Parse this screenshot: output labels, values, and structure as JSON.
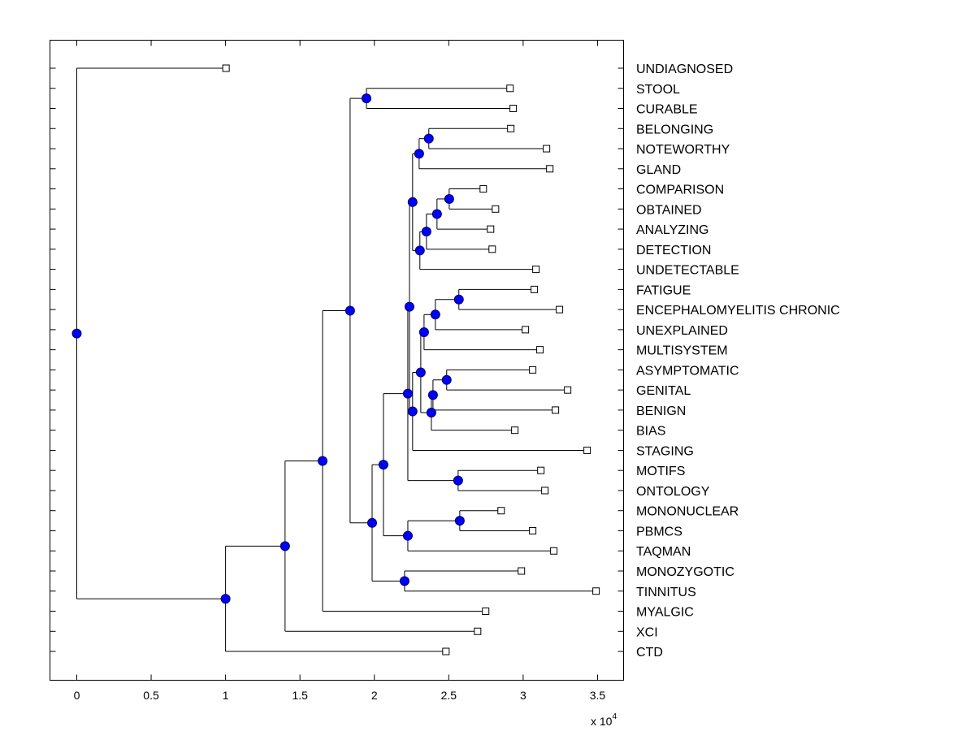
{
  "chart_data": {
    "type": "dendrogram",
    "title": "",
    "xlabel": "",
    "ylabel": "",
    "x_multiplier": {
      "base": "x 10",
      "exponent": "4"
    },
    "xlim": [
      -0.18,
      3.675
    ],
    "xticks": [
      0,
      0.5,
      1,
      1.5,
      2,
      2.5,
      3,
      3.5
    ],
    "xtick_labels": [
      "0",
      "0.5",
      "1",
      "1.5",
      "2",
      "2.5",
      "3",
      "3.5"
    ],
    "colors": {
      "node_fill": "#0000ff",
      "node_stroke": "#000060",
      "line": "#000000",
      "leaf_fill": "#ffffff"
    },
    "leaves": [
      {
        "label": "UNDIAGNOSED",
        "value": 1.003
      },
      {
        "label": "STOOL",
        "value": 2.912
      },
      {
        "label": "CURABLE",
        "value": 2.933
      },
      {
        "label": "BELONGING",
        "value": 2.917
      },
      {
        "label": "NOTEWORTHY",
        "value": 3.157
      },
      {
        "label": "GLAND",
        "value": 3.179
      },
      {
        "label": "COMPARISON",
        "value": 2.732
      },
      {
        "label": "OBTAINED",
        "value": 2.814
      },
      {
        "label": "ANALYZING",
        "value": 2.781
      },
      {
        "label": "DETECTION",
        "value": 2.792
      },
      {
        "label": "UNDETECTABLE",
        "value": 3.086
      },
      {
        "label": "FATIGUE",
        "value": 3.075
      },
      {
        "label": "ENCEPHALOMYELITIS CHRONIC",
        "value": 3.244
      },
      {
        "label": "UNEXPLAINED",
        "value": 3.015
      },
      {
        "label": "MULTISYSTEM",
        "value": 3.113
      },
      {
        "label": "ASYMPTOMATIC",
        "value": 3.064
      },
      {
        "label": "GENITAL",
        "value": 3.299
      },
      {
        "label": "BENIGN",
        "value": 3.217
      },
      {
        "label": "BIAS",
        "value": 2.944
      },
      {
        "label": "STAGING",
        "value": 3.43
      },
      {
        "label": "MOTIFS",
        "value": 3.119
      },
      {
        "label": "ONTOLOGY",
        "value": 3.146
      },
      {
        "label": "MONONUCLEAR",
        "value": 2.852
      },
      {
        "label": "PBMCS",
        "value": 3.064
      },
      {
        "label": "TAQMAN",
        "value": 3.206
      },
      {
        "label": "MONOZYGOTIC",
        "value": 2.988
      },
      {
        "label": "TINNITUS",
        "value": 3.49
      },
      {
        "label": "MYALGIC",
        "value": 2.748
      },
      {
        "label": "XCI",
        "value": 2.694
      },
      {
        "label": "CTD",
        "value": 2.481
      }
    ],
    "nodes": [
      {
        "id": "root",
        "height": 0,
        "children": [
          "UNDIAGNOSED",
          "A"
        ]
      },
      {
        "id": "A",
        "height": 1.0,
        "children": [
          "B",
          "CTD"
        ]
      },
      {
        "id": "B",
        "height": 1.4,
        "children": [
          "C",
          "XCI"
        ]
      },
      {
        "id": "C",
        "height": 1.652,
        "children": [
          "D",
          "MYALGIC"
        ]
      },
      {
        "id": "D",
        "height": 1.837,
        "children": [
          "E",
          "F"
        ]
      },
      {
        "id": "E",
        "height": 1.947,
        "children": [
          "STOOL",
          "CURABLE"
        ]
      },
      {
        "id": "F",
        "height": 1.985,
        "children": [
          "G",
          "H"
        ]
      },
      {
        "id": "H",
        "height": 2.203,
        "children": [
          "MONOZYGOTIC",
          "TINNITUS"
        ]
      },
      {
        "id": "G",
        "height": 2.061,
        "children": [
          "I",
          "J"
        ]
      },
      {
        "id": "J",
        "height": 2.225,
        "children": [
          "K",
          "TAQMAN"
        ]
      },
      {
        "id": "K",
        "height": 2.574,
        "children": [
          "MONONUCLEAR",
          "PBMCS"
        ]
      },
      {
        "id": "I",
        "height": 2.225,
        "children": [
          "L",
          "M"
        ]
      },
      {
        "id": "M",
        "height": 2.563,
        "children": [
          "MOTIFS",
          "ONTOLOGY"
        ]
      },
      {
        "id": "L",
        "height": 2.236,
        "children": [
          "N",
          "O"
        ]
      },
      {
        "id": "N",
        "height": 2.257,
        "children": [
          "P",
          "Q"
        ]
      },
      {
        "id": "P",
        "height": 2.301,
        "children": [
          "R",
          "GLAND"
        ]
      },
      {
        "id": "R",
        "height": 2.366,
        "children": [
          "BELONGING",
          "NOTEWORTHY"
        ]
      },
      {
        "id": "Q",
        "height": 2.306,
        "children": [
          "S",
          "UNDETECTABLE"
        ]
      },
      {
        "id": "S",
        "height": 2.35,
        "children": [
          "T",
          "DETECTION"
        ]
      },
      {
        "id": "T",
        "height": 2.421,
        "children": [
          "U",
          "ANALYZING"
        ]
      },
      {
        "id": "U",
        "height": 2.503,
        "children": [
          "COMPARISON",
          "OBTAINED"
        ]
      },
      {
        "id": "O",
        "height": 2.257,
        "children": [
          "V",
          "STAGING"
        ]
      },
      {
        "id": "V",
        "height": 2.312,
        "children": [
          "W",
          "X"
        ]
      },
      {
        "id": "W",
        "height": 2.334,
        "children": [
          "Y",
          "MULTISYSTEM"
        ]
      },
      {
        "id": "Y",
        "height": 2.41,
        "children": [
          "Z",
          "UNEXPLAINED"
        ]
      },
      {
        "id": "Z",
        "height": 2.568,
        "children": [
          "FATIGUE",
          "ENCEPHALOMYELITIS CHRONIC"
        ]
      },
      {
        "id": "X",
        "height": 2.383,
        "children": [
          "AA",
          "BIAS"
        ]
      },
      {
        "id": "AA",
        "height": 2.394,
        "children": [
          "AB",
          "BENIGN"
        ]
      },
      {
        "id": "AB",
        "height": 2.486,
        "children": [
          "ASYMPTOMATIC",
          "GENITAL"
        ]
      }
    ]
  }
}
